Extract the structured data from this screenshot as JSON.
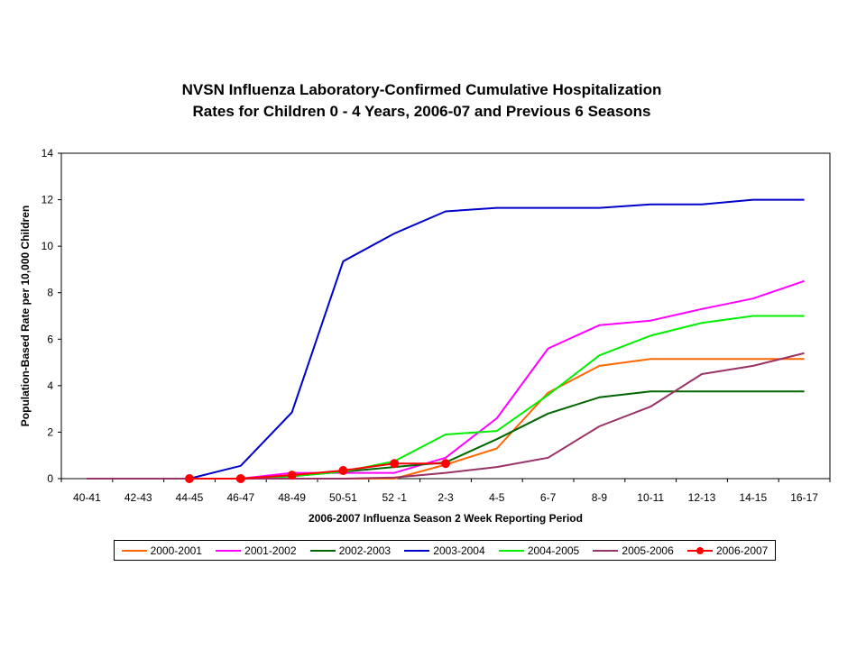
{
  "chart_data": {
    "type": "line",
    "title_line1": "NVSN Influenza Laboratory-Confirmed Cumulative Hospitalization",
    "title_line2": "Rates for Children 0 - 4 Years, 2006-07 and Previous 6 Seasons",
    "xlabel": "2006-2007 Influenza Season 2 Week Reporting Period",
    "ylabel": "Population-Based Rate per 10,000 Children",
    "ylim": [
      0,
      14
    ],
    "yticks": [
      0,
      2,
      4,
      6,
      8,
      10,
      12,
      14
    ],
    "categories": [
      "40-41",
      "42-43",
      "44-45",
      "46-47",
      "48-49",
      "50-51",
      "52 -1",
      "2-3",
      "4-5",
      "6-7",
      "8-9",
      "10-11",
      "12-13",
      "14-15",
      "16-17"
    ],
    "legend_position": "bottom",
    "series": [
      {
        "name": "2000-2001",
        "color": "#ff6600",
        "marker": false,
        "values": [
          0,
          0,
          0,
          0,
          0,
          0,
          0,
          0.6,
          1.3,
          3.7,
          4.85,
          5.15,
          5.15,
          5.15,
          5.15
        ]
      },
      {
        "name": "2001-2002",
        "color": "#ff00ff",
        "marker": false,
        "values": [
          0,
          0,
          0,
          0,
          0.25,
          0.25,
          0.25,
          0.9,
          2.6,
          5.6,
          6.6,
          6.8,
          7.3,
          7.75,
          8.5
        ]
      },
      {
        "name": "2002-2003",
        "color": "#006600",
        "marker": false,
        "values": [
          0,
          0,
          0,
          0,
          0.1,
          0.3,
          0.5,
          0.7,
          1.7,
          2.8,
          3.5,
          3.75,
          3.75,
          3.75,
          3.75
        ]
      },
      {
        "name": "2003-2004",
        "color": "#0000cc",
        "marker": false,
        "values": [
          0,
          0,
          0,
          0.55,
          2.85,
          9.35,
          10.55,
          11.5,
          11.65,
          11.65,
          11.65,
          11.8,
          11.8,
          12,
          12
        ]
      },
      {
        "name": "2004-2005",
        "color": "#00ee00",
        "marker": false,
        "values": [
          0,
          0,
          0,
          0,
          0.1,
          0.3,
          0.75,
          1.9,
          2.05,
          3.6,
          5.3,
          6.15,
          6.7,
          7,
          7
        ]
      },
      {
        "name": "2005-2006",
        "color": "#993366",
        "marker": false,
        "values": [
          0,
          0,
          0,
          0,
          0,
          0,
          0.05,
          0.25,
          0.5,
          0.9,
          2.25,
          3.1,
          4.5,
          4.85,
          5.4
        ]
      },
      {
        "name": "2006-2007",
        "color": "#ff0000",
        "marker": true,
        "values": [
          null,
          null,
          0,
          0,
          0.15,
          0.35,
          0.65,
          0.65,
          null,
          null,
          null,
          null,
          null,
          null,
          null
        ]
      }
    ]
  }
}
